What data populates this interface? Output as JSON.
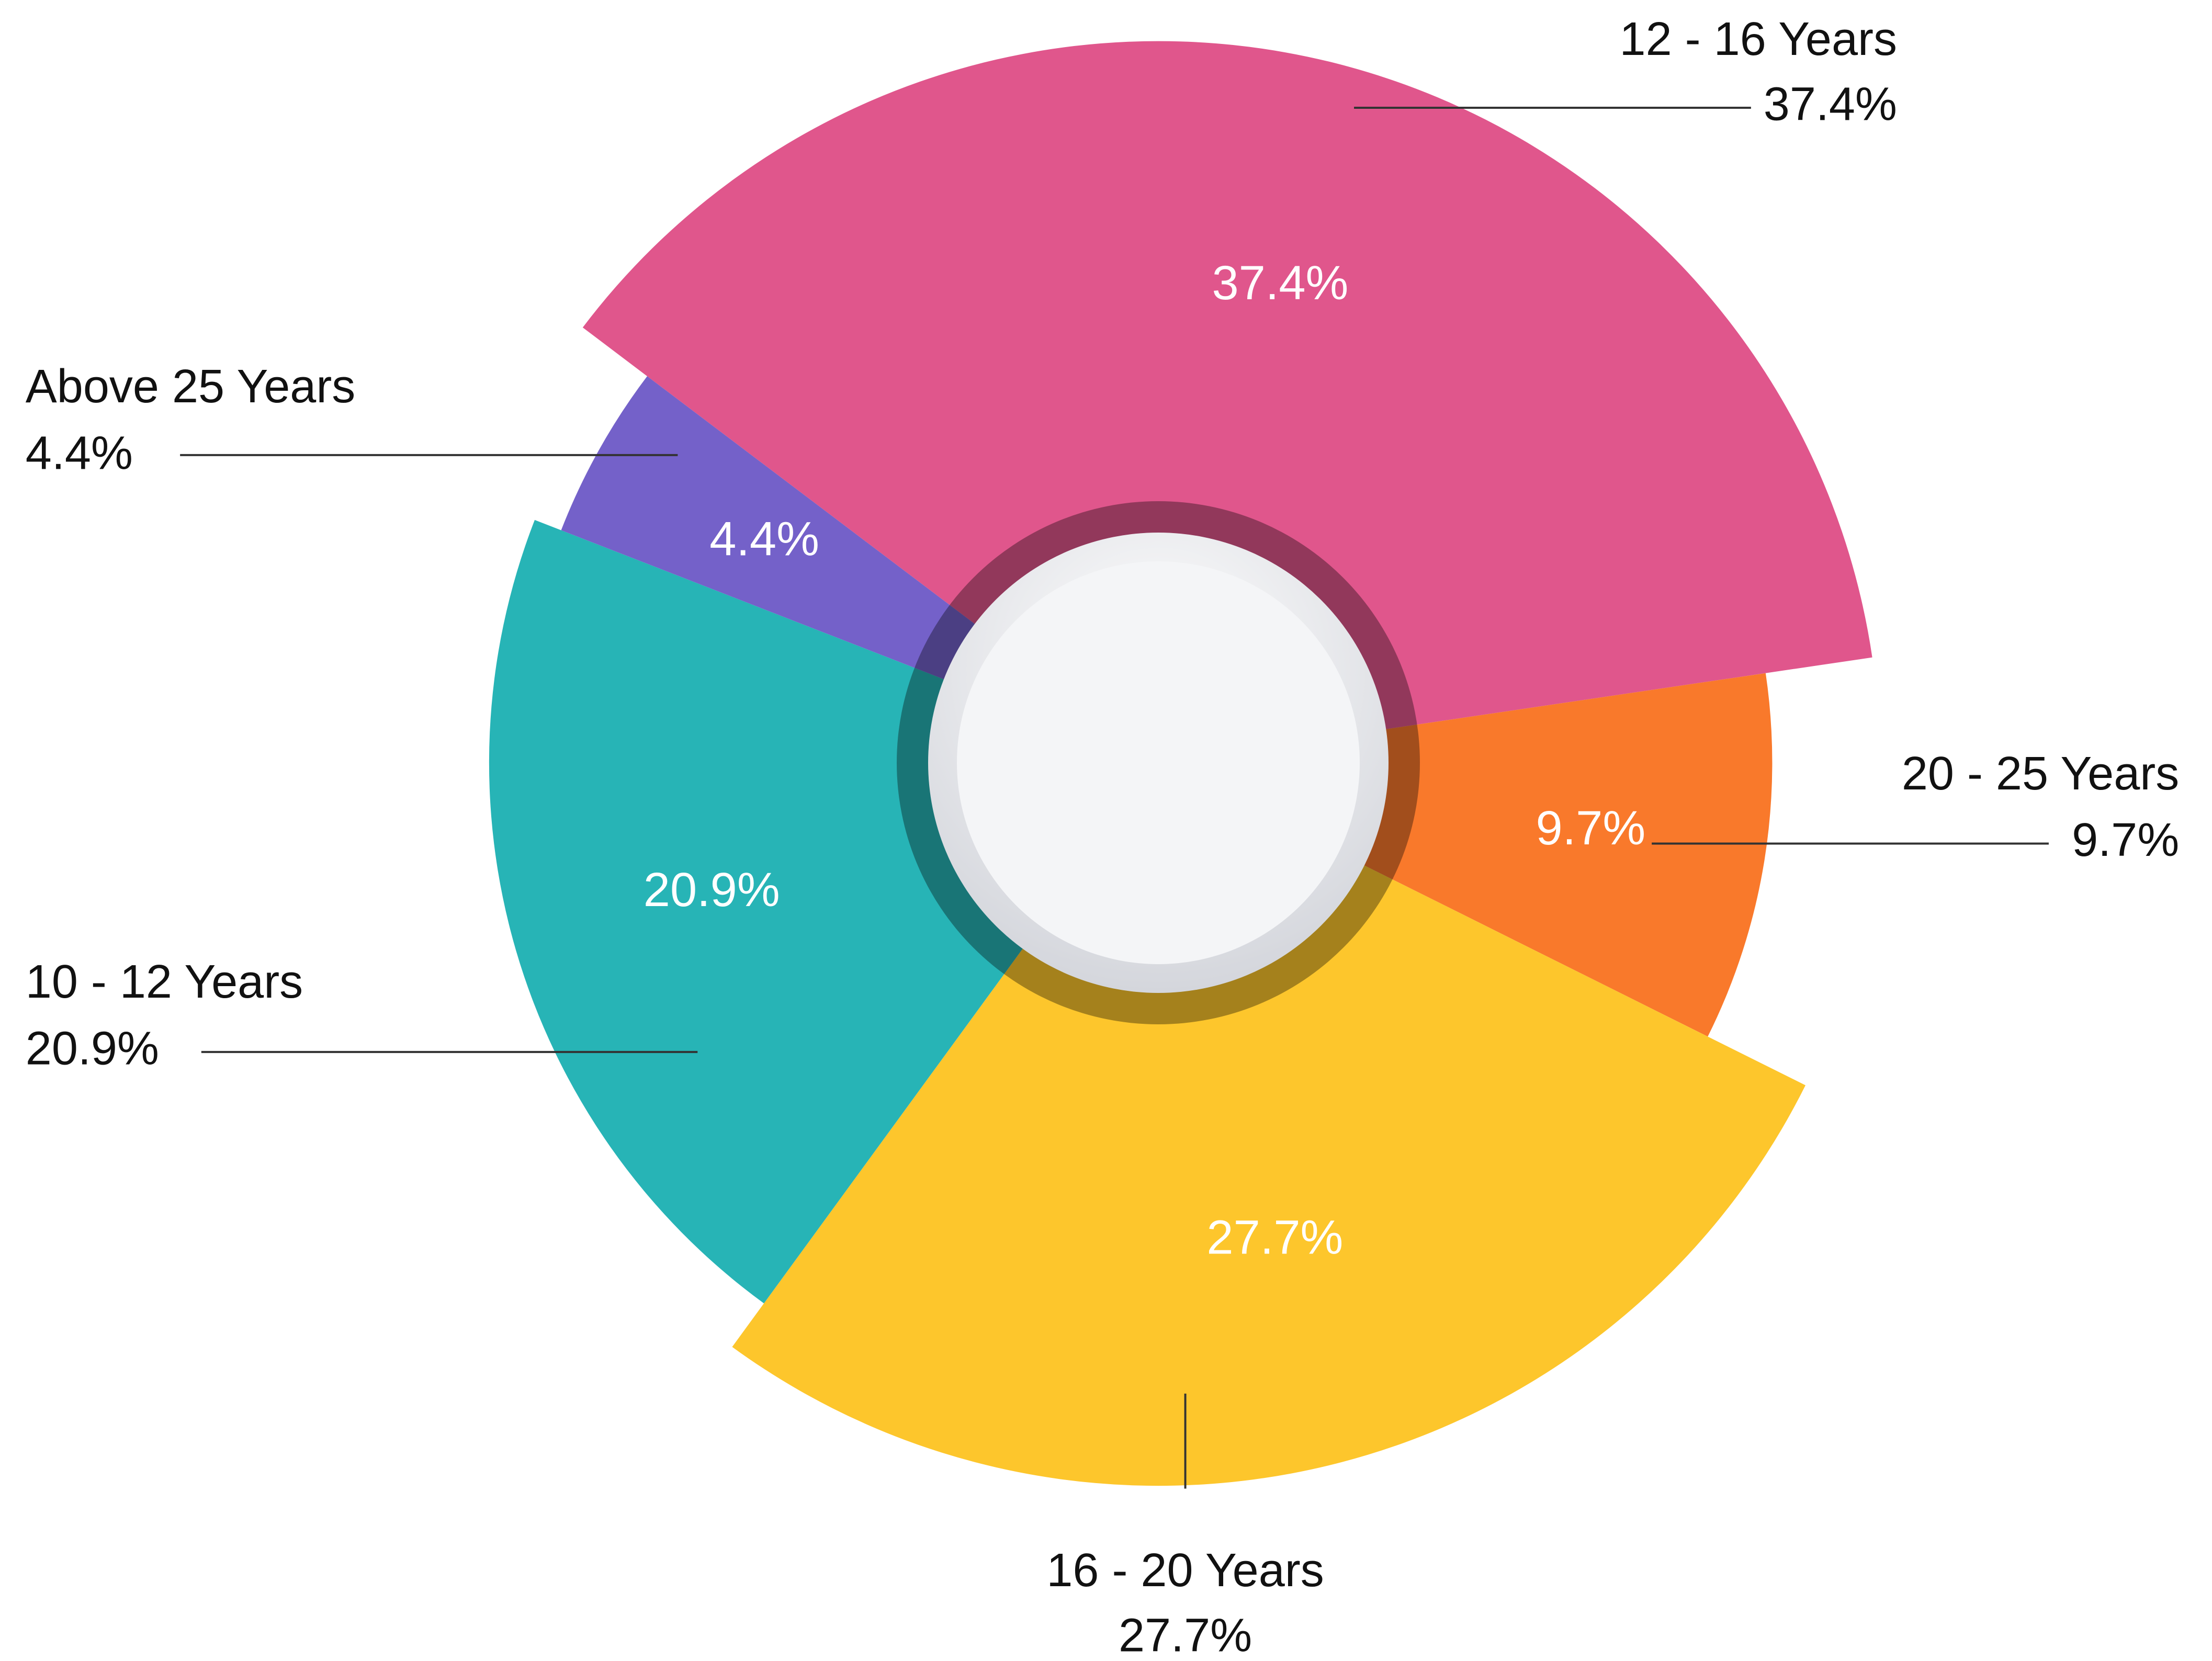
{
  "chart_data": {
    "type": "pie",
    "categories": [
      "12 - 16 Years",
      "20 - 25 Years",
      "16 - 20 Years",
      "10 - 12 Years",
      "Above 25 Years"
    ],
    "values": [
      37.4,
      9.7,
      27.7,
      20.9,
      4.4
    ],
    "value_labels": [
      "37.4%",
      "9.7%",
      "27.7%",
      "20.9%",
      "4.4%"
    ],
    "colors": [
      "#e0568c",
      "#f9792b",
      "#fdc62c",
      "#27b4b6",
      "#7461c9"
    ]
  }
}
